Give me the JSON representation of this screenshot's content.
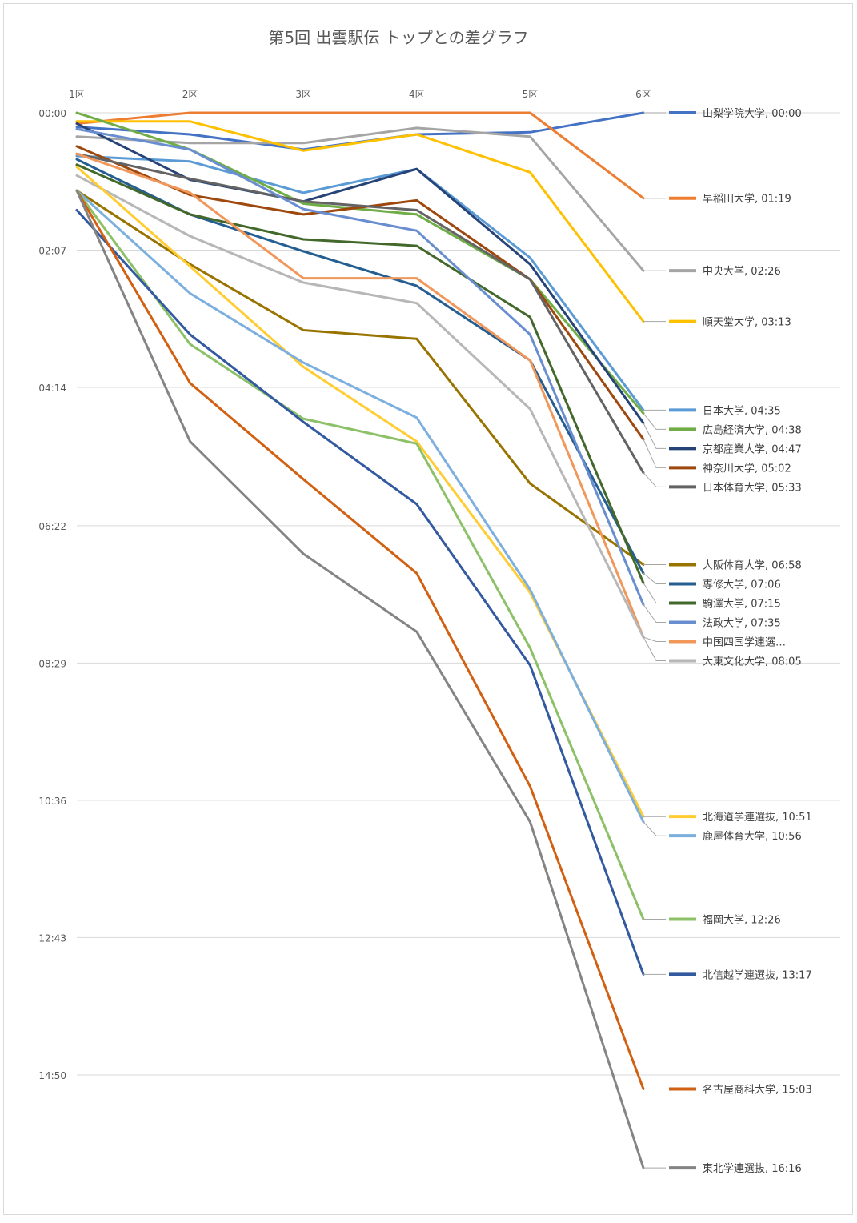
{
  "chart_data": {
    "type": "line",
    "title": "第5回 出雲駅伝 トップとの差グラフ",
    "categories": [
      "1区",
      "2区",
      "3区",
      "4区",
      "5区",
      "6区"
    ],
    "y_unit": "seconds behind leader",
    "y_tick_labels": [
      "00:00",
      "02:07",
      "04:14",
      "06:22",
      "08:29",
      "10:36",
      "12:43",
      "14:50"
    ],
    "y_tick_values": [
      0,
      127,
      254,
      382,
      509,
      636,
      763,
      890
    ],
    "ylim": [
      0,
      990
    ],
    "y_inverted": true,
    "grid": true,
    "legend": "right, labels at line ends",
    "series": [
      {
        "name": "山梨学院大学",
        "end_label": "山梨学院大学, 00:00",
        "color": "#4472c4",
        "values": [
          13,
          20,
          34,
          20,
          18,
          0
        ]
      },
      {
        "name": "早稲田大学",
        "end_label": "早稲田大学, 01:19",
        "color": "#ed7d31",
        "values": [
          10,
          0,
          0,
          0,
          0,
          79
        ]
      },
      {
        "name": "中央大学",
        "end_label": "中央大学, 02:26",
        "color": "#a5a5a5",
        "values": [
          22,
          28,
          28,
          14,
          22,
          146
        ]
      },
      {
        "name": "順天堂大学",
        "end_label": "順天堂大学, 03:13",
        "color": "#ffc000",
        "values": [
          8,
          8,
          35,
          20,
          55,
          193
        ]
      },
      {
        "name": "日本大学",
        "end_label": "日本大学, 04:35",
        "color": "#5b9bd5",
        "values": [
          40,
          45,
          74,
          52,
          134,
          275
        ]
      },
      {
        "name": "広島経済大学",
        "end_label": "広島経済大学, 04:38",
        "color": "#70ad47",
        "values": [
          0,
          34,
          84,
          94,
          154,
          278
        ]
      },
      {
        "name": "京都産業大学",
        "end_label": "京都産業大学, 04:47",
        "color": "#264478",
        "values": [
          10,
          62,
          82,
          52,
          140,
          287
        ]
      },
      {
        "name": "神奈川大学",
        "end_label": "神奈川大学, 05:02",
        "color": "#9e480e",
        "values": [
          31,
          76,
          94,
          81,
          154,
          302
        ]
      },
      {
        "name": "日本体育大学",
        "end_label": "日本体育大学, 05:33",
        "color": "#636363",
        "values": [
          38,
          61,
          82,
          90,
          154,
          333
        ]
      },
      {
        "name": "大阪体育大学",
        "end_label": "大阪体育大学, 06:58",
        "color": "#997300",
        "values": [
          72,
          140,
          201,
          209,
          343,
          418
        ]
      },
      {
        "name": "専修大学",
        "end_label": "専修大学, 07:06",
        "color": "#255e91",
        "values": [
          43,
          94,
          128,
          160,
          229,
          426
        ]
      },
      {
        "name": "駒澤大学",
        "end_label": "駒澤大学, 07:15",
        "color": "#43682b",
        "values": [
          48,
          94,
          117,
          123,
          189,
          435
        ]
      },
      {
        "name": "法政大学",
        "end_label": "法政大学, 07:35",
        "color": "#698ed0",
        "values": [
          15,
          34,
          89,
          109,
          205,
          455
        ]
      },
      {
        "name": "中国四国学連選抜",
        "end_label": "中国四国学連選…",
        "color": "#f1975a",
        "values": [
          38,
          74,
          153,
          153,
          229,
          485
        ]
      },
      {
        "name": "大東文化大学",
        "end_label": "大東文化大学, 08:05",
        "color": "#b7b7b7",
        "values": [
          58,
          114,
          157,
          176,
          274,
          485
        ]
      },
      {
        "name": "北海道学連選抜",
        "end_label": "北海道学連選抜, 10:51",
        "color": "#ffcd33",
        "values": [
          50,
          142,
          235,
          304,
          444,
          651
        ]
      },
      {
        "name": "鹿屋体育大学",
        "end_label": "鹿屋体育大学, 10:56",
        "color": "#7cafdd",
        "values": [
          72,
          167,
          231,
          282,
          441,
          656
        ]
      },
      {
        "name": "福岡大学",
        "end_label": "福岡大学, 12:26",
        "color": "#8cc168",
        "values": [
          72,
          214,
          283,
          306,
          495,
          746
        ]
      },
      {
        "name": "北信越学連選抜",
        "end_label": "北信越学連選抜, 13:17",
        "color": "#335aa1",
        "values": [
          90,
          205,
          286,
          362,
          511,
          797
        ]
      },
      {
        "name": "名古屋商科大学",
        "end_label": "名古屋商科大学, 15:03",
        "color": "#d26012",
        "values": [
          72,
          250,
          339,
          426,
          623,
          903
        ]
      },
      {
        "name": "東北学連選抜",
        "end_label": "東北学連選抜, 16:16",
        "color": "#848484",
        "values": [
          72,
          304,
          408,
          480,
          656,
          976
        ]
      }
    ]
  }
}
